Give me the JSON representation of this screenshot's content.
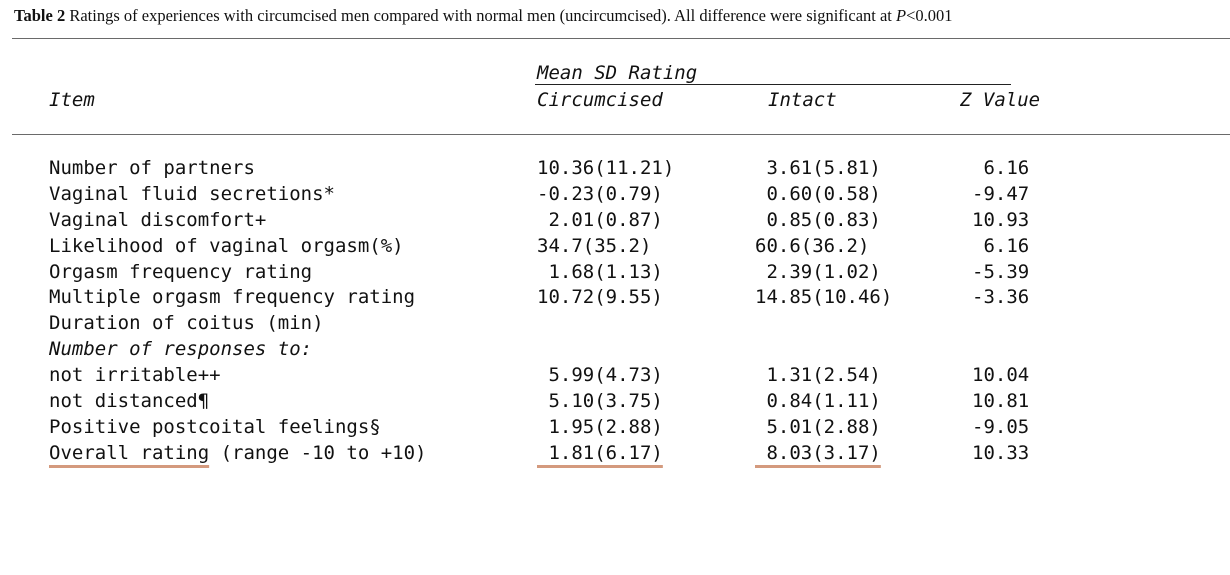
{
  "caption": {
    "label": "Table 2",
    "text_before": " Ratings of experiences with circumcised men compared with normal men (uncircumcised). All difference were significant at ",
    "p_symbol": "P",
    "text_after": "<0.001"
  },
  "header": {
    "group_label": "Mean SD Rating",
    "item": "Item",
    "circumcised": "Circumcised",
    "intact": "Intact",
    "z_value": "Z Value"
  },
  "rows": [
    {
      "item": "Number of partners",
      "circ": "10.36(11.21)",
      "intact": " 3.61(5.81)",
      "z": " 6.16"
    },
    {
      "item": "Vaginal fluid secretions*",
      "circ": "-0.23(0.79)",
      "intact": " 0.60(0.58)",
      "z": "-9.47"
    },
    {
      "item": "Vaginal discomfort+",
      "circ": " 2.01(0.87)",
      "intact": " 0.85(0.83)",
      "z": "10.93"
    },
    {
      "item": "Likelihood of vaginal orgasm(%)",
      "circ": "34.7(35.2)",
      "intact": "60.6(36.2)",
      "z": " 6.16"
    },
    {
      "item": "Orgasm frequency rating",
      "circ": " 1.68(1.13)",
      "intact": " 2.39(1.02)",
      "z": "-5.39"
    },
    {
      "item": "Multiple orgasm frequency rating",
      "circ": "10.72(9.55)",
      "intact": "14.85(10.46)",
      "z": "-3.36"
    },
    {
      "item": "Duration of coitus (min)",
      "circ": "",
      "intact": "",
      "z": ""
    },
    {
      "item": "Number of responses to:",
      "circ": "",
      "intact": "",
      "z": ""
    },
    {
      "item": "not irritable++",
      "circ": " 5.99(4.73)",
      "intact": " 1.31(2.54)",
      "z": "10.04"
    },
    {
      "item": "not distanced¶",
      "circ": " 5.10(3.75)",
      "intact": " 0.84(1.11)",
      "z": "10.81"
    },
    {
      "item": "Positive postcoital feelings§",
      "circ": " 1.95(2.88)",
      "intact": " 5.01(2.88)",
      "z": "-9.05"
    },
    {
      "item": "Overall rating",
      "item_suffix": " (range -10 to +10)",
      "circ": " 1.81(6.17)",
      "intact": " 8.03(3.17)",
      "z": "10.33"
    }
  ]
}
